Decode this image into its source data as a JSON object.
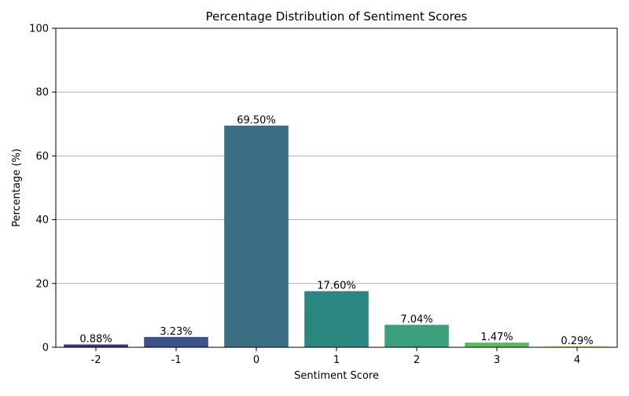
{
  "chart_data": {
    "type": "bar",
    "title": "Percentage Distribution of Sentiment Scores",
    "xlabel": "Sentiment Score",
    "ylabel": "Percentage (%)",
    "categories": [
      "-2",
      "-1",
      "0",
      "1",
      "2",
      "3",
      "4"
    ],
    "values": [
      0.88,
      3.23,
      69.5,
      17.6,
      7.04,
      1.47,
      0.29
    ],
    "value_labels": [
      "0.88%",
      "3.23%",
      "69.50%",
      "17.60%",
      "7.04%",
      "1.47%",
      "0.29%"
    ],
    "colors": [
      "#472d7b",
      "#3b528b",
      "#3a6e83",
      "#2c8680",
      "#39a07a",
      "#5cbd60",
      "#c8dd38"
    ],
    "ylim": [
      0,
      100
    ],
    "yticks": [
      0,
      20,
      40,
      60,
      80,
      100
    ],
    "grid": "horizontal",
    "legend": "none"
  }
}
